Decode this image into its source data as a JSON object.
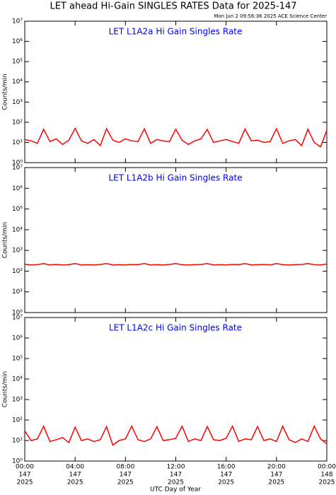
{
  "title": "LET ahead Hi-Gain SINGLES RATES Data for 2025-147",
  "subtitle": "Mon Jun  2 09:56:36 2025 ACE Science Center",
  "xlabel": "UTC Day of Year",
  "xlim": [
    0,
    24
  ],
  "xticks": [
    {
      "value": 0,
      "label": "00:00"
    },
    {
      "value": 4,
      "label": "04:00"
    },
    {
      "value": 8,
      "label": "08:00"
    },
    {
      "value": 12,
      "label": "12:00"
    },
    {
      "value": 16,
      "label": "16:00"
    },
    {
      "value": 20,
      "label": "20:00"
    },
    {
      "value": 24,
      "label": "00:00"
    }
  ],
  "xtick_sublabels": [
    [
      "147",
      "2025"
    ],
    [
      "147",
      "2025"
    ],
    [
      "147",
      "2025"
    ],
    [
      "147",
      "2025"
    ],
    [
      "147",
      "2025"
    ],
    [
      "147",
      "2025"
    ],
    [
      "148",
      "2025"
    ]
  ],
  "chart_data": [
    {
      "type": "line",
      "title": "LET L1A2a Hi Gain Singles Rate",
      "ylabel": "Counts/min",
      "log_scale": true,
      "color": "#ff0000",
      "ylim": [
        1,
        10000000
      ],
      "yticks": [
        {
          "value": 1,
          "label": "10⁰"
        },
        {
          "value": 10,
          "label": "10¹"
        },
        {
          "value": 100,
          "label": "10²"
        },
        {
          "value": 1000,
          "label": "10³"
        },
        {
          "value": 10000,
          "label": "10⁴"
        },
        {
          "value": 100000,
          "label": "10⁵"
        },
        {
          "value": 1000000,
          "label": "10⁶"
        },
        {
          "value": 10000000,
          "label": "10⁷"
        }
      ],
      "x": [
        0,
        0.5,
        1,
        1.5,
        2,
        2.5,
        3,
        3.5,
        4,
        4.5,
        5,
        5.5,
        6,
        6.5,
        7,
        7.5,
        8,
        8.5,
        9,
        9.5,
        10,
        10.5,
        11,
        11.5,
        12,
        12.5,
        13,
        13.5,
        14,
        14.5,
        15,
        15.5,
        16,
        16.5,
        17,
        17.5,
        18,
        18.5,
        19,
        19.5,
        20,
        20.5,
        21,
        21.5,
        22,
        22.5,
        23,
        23.5,
        24
      ],
      "values": [
        14,
        12,
        9,
        45,
        11,
        15,
        8,
        13,
        50,
        12,
        9,
        14,
        7,
        48,
        13,
        10,
        15,
        12,
        11,
        47,
        9,
        14,
        12,
        11,
        45,
        13,
        8,
        12,
        15,
        44,
        10,
        12,
        14,
        11,
        9,
        46,
        12,
        13,
        10,
        11,
        48,
        9,
        12,
        14,
        7,
        45,
        10,
        6,
        40
      ]
    },
    {
      "type": "line",
      "title": "LET L1A2b Hi Gain Singles Rate",
      "ylabel": "Counts/min",
      "log_scale": true,
      "color": "#ff0000",
      "ylim": [
        1,
        10000000
      ],
      "yticks": [
        {
          "value": 1,
          "label": "10⁰"
        },
        {
          "value": 10,
          "label": "10¹"
        },
        {
          "value": 100,
          "label": "10²"
        },
        {
          "value": 1000,
          "label": "10³"
        },
        {
          "value": 10000,
          "label": "10⁴"
        },
        {
          "value": 100000,
          "label": "10⁵"
        },
        {
          "value": 1000000,
          "label": "10⁶"
        },
        {
          "value": 10000000,
          "label": "10⁷"
        }
      ],
      "x": [
        0,
        0.5,
        1,
        1.5,
        2,
        2.5,
        3,
        3.5,
        4,
        4.5,
        5,
        5.5,
        6,
        6.5,
        7,
        7.5,
        8,
        8.5,
        9,
        9.5,
        10,
        10.5,
        11,
        11.5,
        12,
        12.5,
        13,
        13.5,
        14,
        14.5,
        15,
        15.5,
        16,
        16.5,
        17,
        17.5,
        18,
        18.5,
        19,
        19.5,
        20,
        20.5,
        21,
        21.5,
        22,
        22.5,
        23,
        23.5,
        24
      ],
      "values": [
        215,
        200,
        205,
        230,
        200,
        210,
        200,
        205,
        230,
        200,
        205,
        200,
        210,
        230,
        200,
        205,
        200,
        210,
        205,
        230,
        200,
        205,
        200,
        210,
        230,
        205,
        200,
        205,
        210,
        230,
        200,
        205,
        200,
        210,
        205,
        230,
        200,
        205,
        210,
        200,
        230,
        205,
        200,
        205,
        210,
        230,
        205,
        200,
        220
      ]
    },
    {
      "type": "line",
      "title": "LET L1A2c Hi Gain Singles Rate",
      "ylabel": "Counts/min",
      "log_scale": true,
      "color": "#ff0000",
      "ylim": [
        1,
        10000000
      ],
      "yticks": [
        {
          "value": 1,
          "label": "10⁰"
        },
        {
          "value": 10,
          "label": "10¹"
        },
        {
          "value": 100,
          "label": "10²"
        },
        {
          "value": 1000,
          "label": "10³"
        },
        {
          "value": 10000,
          "label": "10⁴"
        },
        {
          "value": 100000,
          "label": "10⁵"
        },
        {
          "value": 1000000,
          "label": "10⁶"
        },
        {
          "value": 10000000,
          "label": "10⁷"
        }
      ],
      "x": [
        0,
        0.5,
        1,
        1.5,
        2,
        2.5,
        3,
        3.5,
        4,
        4.5,
        5,
        5.5,
        6,
        6.5,
        7,
        7.5,
        8,
        8.5,
        9,
        9.5,
        10,
        10.5,
        11,
        11.5,
        12,
        12.5,
        13,
        13.5,
        14,
        14.5,
        15,
        15.5,
        16,
        16.5,
        17,
        17.5,
        18,
        18.5,
        19,
        19.5,
        20,
        20.5,
        21,
        21.5,
        22,
        22.5,
        23,
        23.5,
        24
      ],
      "values": [
        30,
        10,
        12,
        50,
        9,
        11,
        14,
        8,
        45,
        10,
        12,
        9,
        11,
        48,
        6,
        10,
        12,
        50,
        11,
        9,
        12,
        47,
        10,
        11,
        13,
        50,
        9,
        12,
        10,
        48,
        11,
        10,
        13,
        50,
        9,
        12,
        11,
        48,
        10,
        12,
        9,
        50,
        11,
        8,
        12,
        9,
        50,
        12,
        7
      ]
    }
  ]
}
